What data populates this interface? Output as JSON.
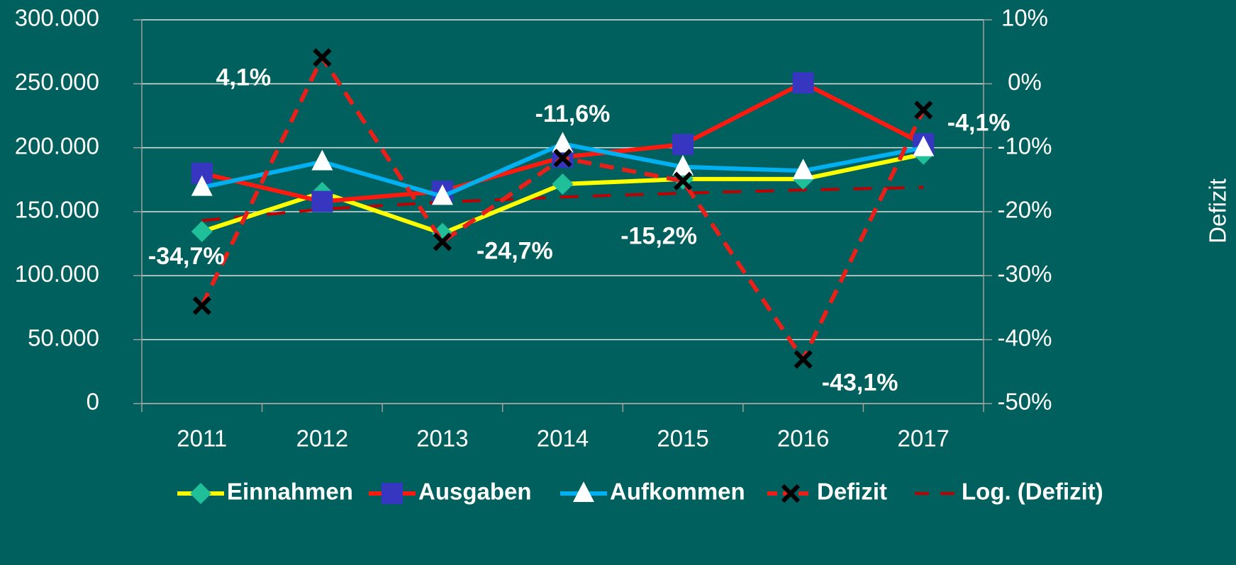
{
  "chart_data": {
    "type": "line",
    "y2_label": "Defizit",
    "categories": [
      "2011",
      "2012",
      "2013",
      "2014",
      "2015",
      "2016",
      "2017"
    ],
    "ylim": [
      0,
      300000
    ],
    "yticks": [
      {
        "value": 0,
        "label": "0"
      },
      {
        "value": 50000,
        "label": "50.000"
      },
      {
        "value": 100000,
        "label": "100.000"
      },
      {
        "value": 150000,
        "label": "150.000"
      },
      {
        "value": 200000,
        "label": "200.000"
      },
      {
        "value": 250000,
        "label": "250.000"
      },
      {
        "value": 300000,
        "label": "300.000"
      }
    ],
    "y2lim": [
      -50,
      10
    ],
    "y2ticks": [
      {
        "value": -50,
        "label": "-50%"
      },
      {
        "value": -40,
        "label": "-40%"
      },
      {
        "value": -30,
        "label": "-30%"
      },
      {
        "value": -20,
        "label": "-20%"
      },
      {
        "value": -10,
        "label": "-10%"
      },
      {
        "value": 0,
        "label": "0%"
      },
      {
        "value": 10,
        "label": "10%"
      }
    ],
    "grid": true,
    "legend": "bottom",
    "series": [
      {
        "name": "Einnahmen",
        "color": "#ffff00",
        "marker": "diamond",
        "marker_color": "#1fbf9a",
        "values": [
          134500,
          165000,
          133000,
          171600,
          175500,
          175500,
          195000
        ]
      },
      {
        "name": "Ausgaben",
        "color": "#ff1a10",
        "marker": "square",
        "marker_color": "#3636c0",
        "values": [
          180000,
          158000,
          166000,
          192600,
          202600,
          250700,
          203000
        ]
      },
      {
        "name": "Aufkommen",
        "color": "#00b0f0",
        "marker": "triangle",
        "marker_color": "#ffffff",
        "values": [
          169000,
          189000,
          162000,
          203000,
          185000,
          182000,
          200000
        ]
      },
      {
        "name": "Defizit",
        "color": "#e8201a",
        "marker": "x",
        "marker_color": "#000000",
        "dash": true,
        "axis": "y2",
        "values": [
          -34.7,
          4.1,
          -24.7,
          -11.6,
          -15.2,
          -43.1,
          -4.1
        ],
        "value_labels": [
          "-34,7%",
          "4,1%",
          "-24,7%",
          "-11,6%",
          "-15,2%",
          "-43,1%",
          "-4,1%"
        ]
      },
      {
        "name": "Log. (Defizit)",
        "color": "#c00000",
        "dash": true,
        "axis": "y2",
        "values": [
          -21.4,
          -19.6,
          -18.5,
          -17.7,
          -17.1,
          -16.6,
          -16.2
        ]
      }
    ]
  }
}
